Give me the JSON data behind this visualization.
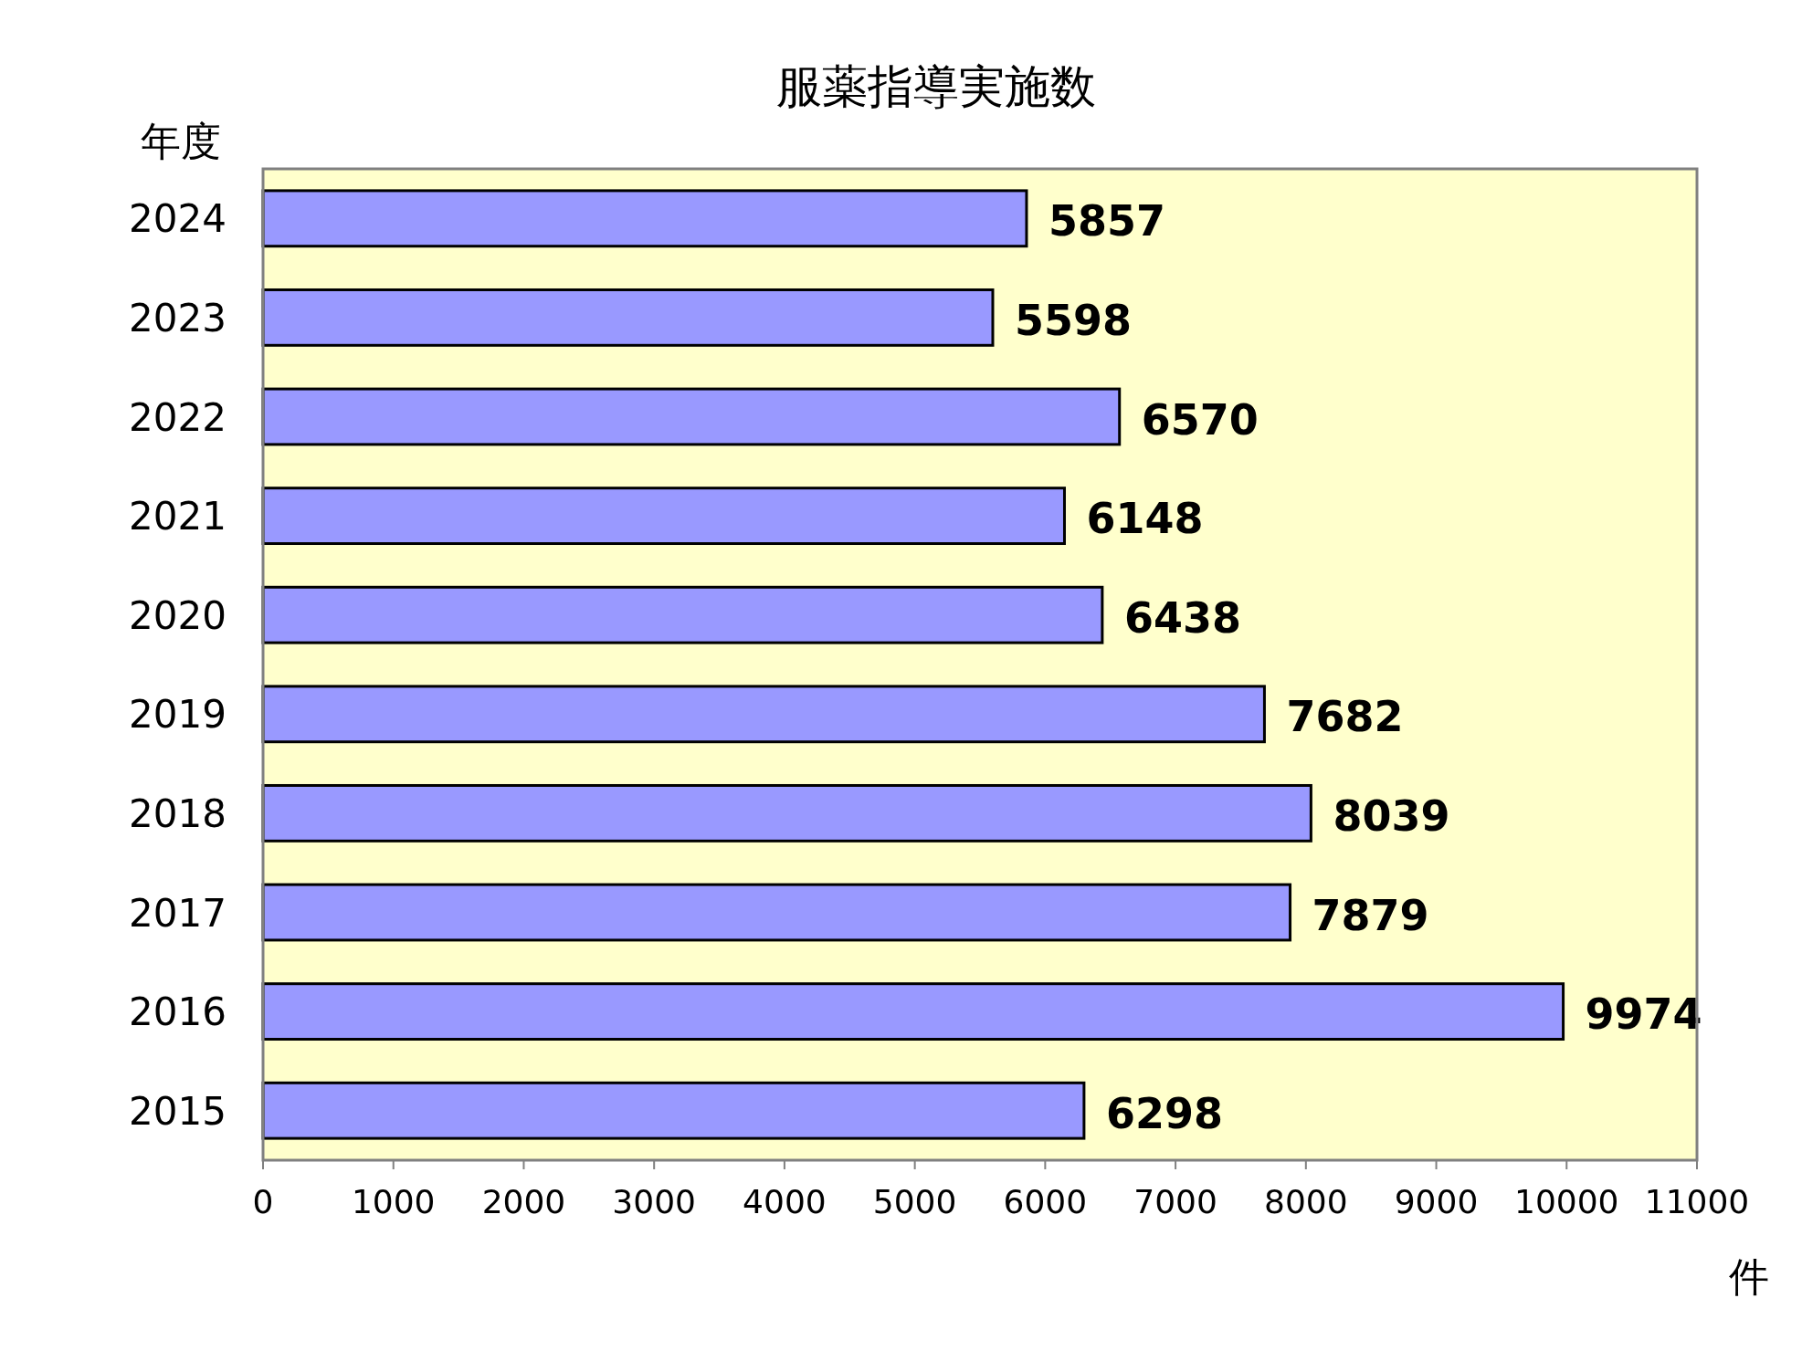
{
  "chart_data": {
    "type": "bar",
    "orientation": "horizontal",
    "title": "服薬指導実施数",
    "ylabel": "年度",
    "xlabel": "件",
    "categories": [
      "2024",
      "2023",
      "2022",
      "2021",
      "2020",
      "2019",
      "2018",
      "2017",
      "2016",
      "2015"
    ],
    "values": [
      5857,
      5598,
      6570,
      6148,
      6438,
      7682,
      8039,
      7879,
      9974,
      6298
    ],
    "color": "#9999ff",
    "xlim": [
      0,
      11000
    ],
    "xticks": [
      0,
      1000,
      2000,
      3000,
      4000,
      5000,
      6000,
      7000,
      8000,
      9000,
      10000,
      11000
    ],
    "data_labels": true
  }
}
